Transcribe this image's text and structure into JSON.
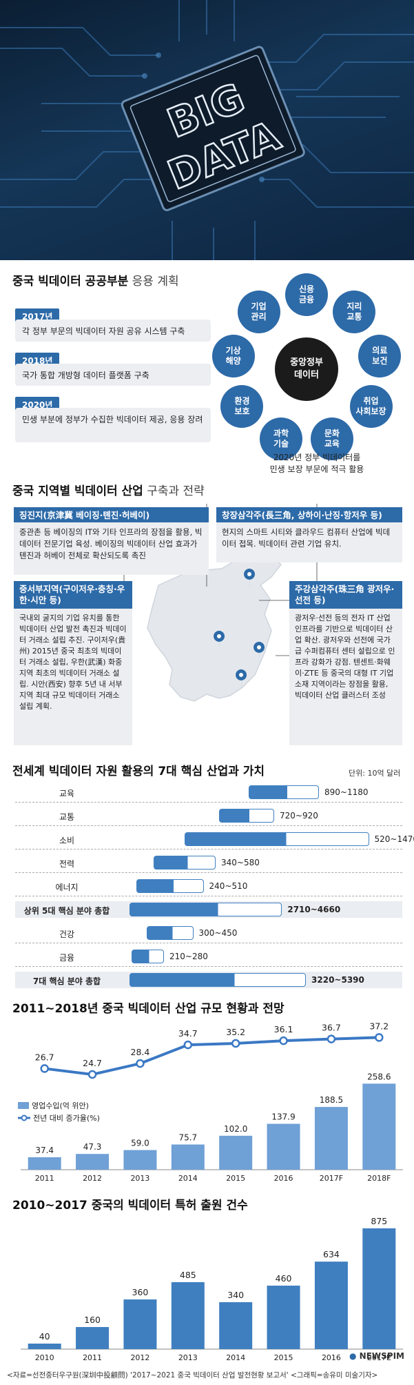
{
  "hero": {
    "line1": "BIG",
    "line2": "DATA"
  },
  "public_section": {
    "title_bold": "중국 빅데이터 공공부분",
    "title_light": " 응용 계획",
    "timeline": [
      {
        "year": "2017년",
        "desc": "각 정부 부문의 빅데이터 자원 공유 시스템 구축"
      },
      {
        "year": "2018년",
        "desc": "국가 통합 개방형 데이터 플랫폼 구축"
      },
      {
        "year": "2020년",
        "desc": "민생 부분에 정부가 수집한 빅데이터 제공, 응용 장려"
      }
    ],
    "center": "중앙정부\n데이터",
    "ring": [
      "신용\n금융",
      "지리\n교통",
      "의료\n보건",
      "취업\n사회보장",
      "문화\n교육",
      "과학\n기술",
      "환경\n보호",
      "기상\n해양",
      "기업\n관리"
    ],
    "caption": "2020년 정부 빅데이터를\n민생 보장 부문에 적극 활용"
  },
  "region_section": {
    "title_bold": "중국 지역별 빅데이터 산업",
    "title_light": " 구축과 전략",
    "regions": [
      {
        "head": "징진지(京津冀 베이징·톈진·허베이)",
        "body": "중관촌 등 베이징의 IT와 기타 인프라의 장점을 활용, 빅데이터 전문기업 육성. 베이징의 빅데이터 산업 효과가 톈진과 허베이 전체로 확산되도록 촉진"
      },
      {
        "head": "창장삼각주(長三角, 상하이·난징·항저우 등)",
        "body": "현지의 스마트 시티와 클라우드 컴퓨터 산업에 빅데이터 접목. 빅데이터 관련 기업 유치."
      },
      {
        "head": "중서부지역(구이저우·충칭·우한·시안 등)",
        "body": "국내외 굴지의 기업 유치를 통한 빅데이터 산업 발전 촉진과 빅데이터 거래소 설립 추진. 구이저우(貴州) 2015년 중국 최초의 빅데이터 거래소 설립, 우한(武漢) 화중 지역 최초의 빅데이터 거래소 설립. 시안(西安) 향후 5년 내 서부지역 최대 규모 빅데이터 거래소 설립 계획."
      },
      {
        "head": "주강삼각주(珠三角 광저우·선전 등)",
        "body": "광저우·선전 등의 전자 IT 산업 인프라를 기반으로 빅데이터 산업 확산. 광저우와 선전에 국가급 수퍼컴퓨터 센터 설립으로 인프라 강화가 강점. 텐센트·화웨이·ZTE 등 중국의 대형 IT 기업 소재 지역이라는 장점을 활용, 빅데이터 산업 클러스터 조성"
      }
    ]
  },
  "industry_section": {
    "title": "전세계 빅데이터 자원 활용의 7대 핵심 산업과 가치",
    "unit": "단위: 10억 달러",
    "rows": [
      {
        "label": "교육",
        "min": 890,
        "max": 1180,
        "range": "890~1180",
        "bold": false
      },
      {
        "label": "교통",
        "min": 720,
        "max": 920,
        "range": "720~920",
        "bold": false
      },
      {
        "label": "소비",
        "min": 520,
        "max": 1470,
        "range": "520~1470",
        "bold": false
      },
      {
        "label": "전력",
        "min": 340,
        "max": 580,
        "range": "340~580",
        "bold": false
      },
      {
        "label": "에너지",
        "min": 240,
        "max": 510,
        "range": "240~510",
        "bold": false
      },
      {
        "label": "상위 5대 핵심 분야 총합",
        "min": 2710,
        "max": 4660,
        "range": "2710~4660",
        "bold": true
      },
      {
        "label": "건강",
        "min": 300,
        "max": 450,
        "range": "300~450",
        "bold": false
      },
      {
        "label": "금융",
        "min": 210,
        "max": 280,
        "range": "210~280",
        "bold": false
      },
      {
        "label": "7대 핵심 분야 총합",
        "min": 3220,
        "max": 5390,
        "range": "3220~5390",
        "bold": true
      }
    ]
  },
  "chart_data": [
    {
      "type": "bar",
      "title": "2011~2018년 중국 빅데이터 산업 규모 현황과 전망",
      "categories": [
        "2011",
        "2012",
        "2013",
        "2014",
        "2015",
        "2016",
        "2017F",
        "2018F"
      ],
      "series": [
        {
          "name": "영업수입(억 위안)",
          "type": "bar",
          "values": [
            37.4,
            47.3,
            59.0,
            75.7,
            102.0,
            137.9,
            188.5,
            258.6
          ],
          "labels": [
            "37.4",
            "47.3",
            "59.0",
            "75.7",
            "102.0",
            "137.9",
            "188.5",
            "258.6"
          ]
        },
        {
          "name": "전년 대비 증가율(%)",
          "type": "line",
          "values": [
            26.7,
            24.7,
            28.4,
            34.7,
            35.2,
            36.1,
            36.7,
            37.2
          ],
          "labels": [
            "26.7",
            "24.7",
            "28.4",
            "34.7",
            "35.2",
            "36.1",
            "36.7",
            "37.2"
          ]
        }
      ],
      "legend": "left"
    },
    {
      "type": "bar",
      "title": "2010~2017 중국의 빅데이터 특허 출원 건수",
      "categories": [
        "2010",
        "2011",
        "2012",
        "2013",
        "2014",
        "2015",
        "2016",
        "2017E"
      ],
      "values": [
        40,
        160,
        360,
        485,
        340,
        460,
        634,
        875
      ],
      "labels": [
        "40",
        "160",
        "360",
        "485",
        "340",
        "460",
        "634",
        "875"
      ]
    }
  ],
  "footer": {
    "source": "<자료=선전중터우구원(深圳中投顧問) '2017~2021 중국 빅데이터 산업 발전현황 보고서'   <그래픽=송유미 미술기자>",
    "brand": "NEWSPIM"
  },
  "colors": {
    "accent": "#2d6aa8",
    "bar_light": "#6fa0d6",
    "dark": "#1b1b1b"
  }
}
